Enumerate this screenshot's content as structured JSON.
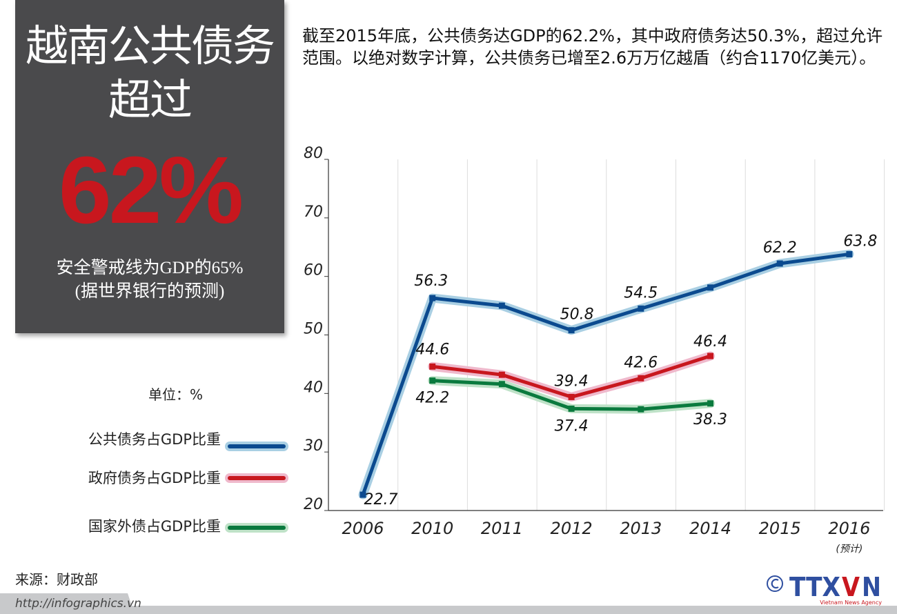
{
  "panel": {
    "title_line1": "越南公共债务",
    "title_line2": "超过",
    "headline": "62%",
    "subtitle_line1": "安全警戒线为GDP的65%",
    "subtitle_line2": "(据世界银行的预测)"
  },
  "intro": "截至2015年底，公共债务达GDP的62.2%，其中政府债务达50.3%，超过允许范围。以绝对数字计算，公共债务已增至2.6万万亿越盾（约合1170亿美元）。",
  "unit_label": "单位：%",
  "source": "来源：财政部",
  "url": "http://infographics.vn",
  "logo": {
    "copyright": "©",
    "text": "TTXVN",
    "tagline": "Vietnam News Agency"
  },
  "chart_data": {
    "type": "line",
    "categories": [
      "2006",
      "2010",
      "2011",
      "2012",
      "2013",
      "2014",
      "2015",
      "2016"
    ],
    "category_notes": {
      "2016": "(预计)"
    },
    "ylim": [
      20,
      80
    ],
    "yticks": [
      20,
      30,
      40,
      50,
      60,
      70,
      80
    ],
    "grid": "vertical",
    "legend": "left",
    "series": [
      {
        "name": "公共债务占GDP比重",
        "color": "#0b4a8f",
        "halo": "#a9cfe3",
        "values": [
          22.7,
          56.3,
          55.0,
          50.8,
          54.5,
          58.1,
          62.2,
          63.8
        ],
        "labels": [
          "22.7",
          "56.3",
          null,
          "50.8",
          "54.5",
          null,
          "62.2",
          "63.8"
        ]
      },
      {
        "name": "政府债务占GDP比重",
        "color": "#c8171e",
        "halo": "#efb9cc",
        "values": [
          null,
          44.6,
          43.2,
          39.4,
          42.6,
          46.4,
          null,
          null
        ],
        "labels": [
          null,
          "44.6",
          null,
          "39.4",
          "42.6",
          "46.4",
          null,
          null
        ]
      },
      {
        "name": "国家外债占GDP比重",
        "color": "#0a7a3e",
        "halo": "#bfe2c8",
        "values": [
          null,
          42.2,
          41.6,
          37.4,
          37.3,
          38.3,
          null,
          null
        ],
        "labels": [
          null,
          "42.2",
          null,
          "37.4",
          null,
          "38.3",
          null,
          null
        ]
      }
    ]
  }
}
